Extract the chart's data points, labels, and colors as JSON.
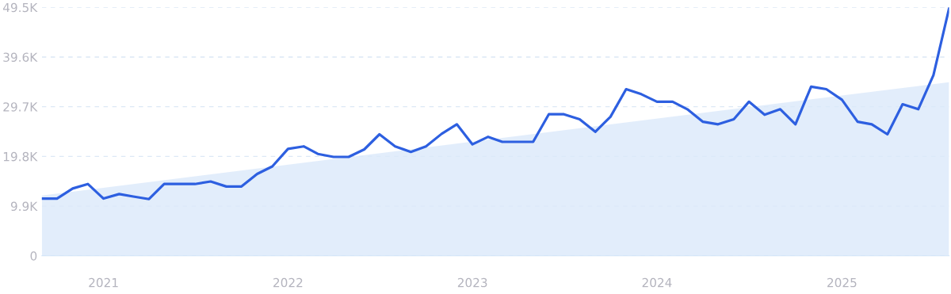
{
  "chart_data": {
    "type": "line",
    "x": [
      "2020-09",
      "2020-10",
      "2020-11",
      "2020-12",
      "2021-01",
      "2021-02",
      "2021-03",
      "2021-04",
      "2021-05",
      "2021-06",
      "2021-07",
      "2021-08",
      "2021-09",
      "2021-10",
      "2021-11",
      "2021-12",
      "2022-01",
      "2022-02",
      "2022-03",
      "2022-04",
      "2022-05",
      "2022-06",
      "2022-07",
      "2022-08",
      "2022-09",
      "2022-10",
      "2022-11",
      "2022-12",
      "2023-01",
      "2023-02",
      "2023-03",
      "2023-04",
      "2023-05",
      "2023-06",
      "2023-07",
      "2023-08",
      "2023-09",
      "2023-10",
      "2023-11",
      "2023-12",
      "2024-01",
      "2024-02",
      "2024-03",
      "2024-04",
      "2024-05",
      "2024-06",
      "2024-07",
      "2024-08",
      "2024-09",
      "2024-10",
      "2024-11",
      "2024-12",
      "2025-01",
      "2025-02",
      "2025-03",
      "2025-04",
      "2025-05",
      "2025-06",
      "2025-07",
      "2025-08"
    ],
    "series": [
      {
        "type": "area",
        "color": "#dbe9fa",
        "x": [
          "2020-09",
          "2025-08"
        ],
        "values": [
          12000,
          34600
        ]
      },
      {
        "color": "#2d5fe0",
        "values": [
          11400,
          11400,
          13400,
          14300,
          11400,
          12300,
          11800,
          11300,
          14300,
          14300,
          14300,
          14800,
          13800,
          13800,
          16300,
          17800,
          21300,
          21800,
          20300,
          19700,
          19700,
          21200,
          24200,
          21800,
          20700,
          21800,
          24300,
          26200,
          22200,
          23700,
          22700,
          22700,
          22700,
          28200,
          28200,
          27200,
          24700,
          27700,
          33200,
          32200,
          30700,
          30700,
          29200,
          26700,
          26200,
          27200,
          30700,
          28100,
          29200,
          26200,
          33700,
          33200,
          31100,
          26700,
          26200,
          24200,
          30200,
          29200,
          36000,
          49300
        ]
      }
    ],
    "xlim": [
      "2020-09",
      "2025-08"
    ],
    "xticks": [
      {
        "value": "2021-01",
        "label": "2021"
      },
      {
        "value": "2022-01",
        "label": "2022"
      },
      {
        "value": "2023-01",
        "label": "2023"
      },
      {
        "value": "2024-01",
        "label": "2024"
      },
      {
        "value": "2025-01",
        "label": "2025"
      }
    ],
    "ylim": [
      0,
      49500
    ],
    "yticks": [
      0,
      {
        "value": 9900,
        "label": "9.9K"
      },
      {
        "value": 19800,
        "label": "19.8K"
      },
      {
        "value": 29700,
        "label": "29.7K"
      },
      {
        "value": 39600,
        "label": "39.6K"
      },
      {
        "value": 49500,
        "label": "49.5K"
      }
    ],
    "grid": "y",
    "marker": "none",
    "line_style": "solid"
  }
}
